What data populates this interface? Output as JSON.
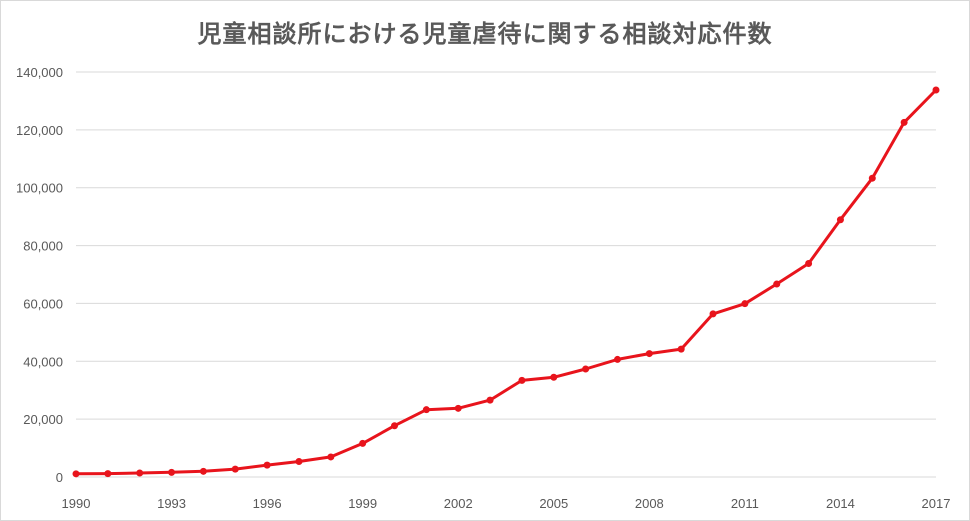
{
  "chart_data": {
    "type": "line",
    "title": "児童相談所における児童虐待に関する相談対応件数",
    "xlabel": "",
    "ylabel": "",
    "x": [
      1990,
      1991,
      1992,
      1993,
      1994,
      1995,
      1996,
      1997,
      1998,
      1999,
      2000,
      2001,
      2002,
      2003,
      2004,
      2005,
      2006,
      2007,
      2008,
      2009,
      2010,
      2011,
      2012,
      2013,
      2014,
      2015,
      2016,
      2017
    ],
    "series": [
      {
        "values": [
          1101,
          1171,
          1372,
          1611,
          1961,
          2722,
          4102,
          5352,
          6932,
          11631,
          17725,
          23274,
          23738,
          26569,
          33408,
          34472,
          37323,
          40639,
          42664,
          44211,
          56384,
          59919,
          66701,
          73802,
          88931,
          103286,
          122575,
          133778
        ]
      }
    ],
    "xticks": [
      "1990",
      "1993",
      "1996",
      "1999",
      "2002",
      "2005",
      "2008",
      "2011",
      "2014",
      "2017"
    ],
    "yticks": [
      "0",
      "20,000",
      "40,000",
      "60,000",
      "80,000",
      "100,000",
      "120,000",
      "140,000"
    ],
    "ylim": [
      0,
      140000
    ],
    "xlim": [
      1990,
      2017
    ],
    "grid": true,
    "legend": "none",
    "colors": {
      "line": "#e8141c",
      "grid": "#d9d9d9",
      "text": "#595959"
    }
  }
}
